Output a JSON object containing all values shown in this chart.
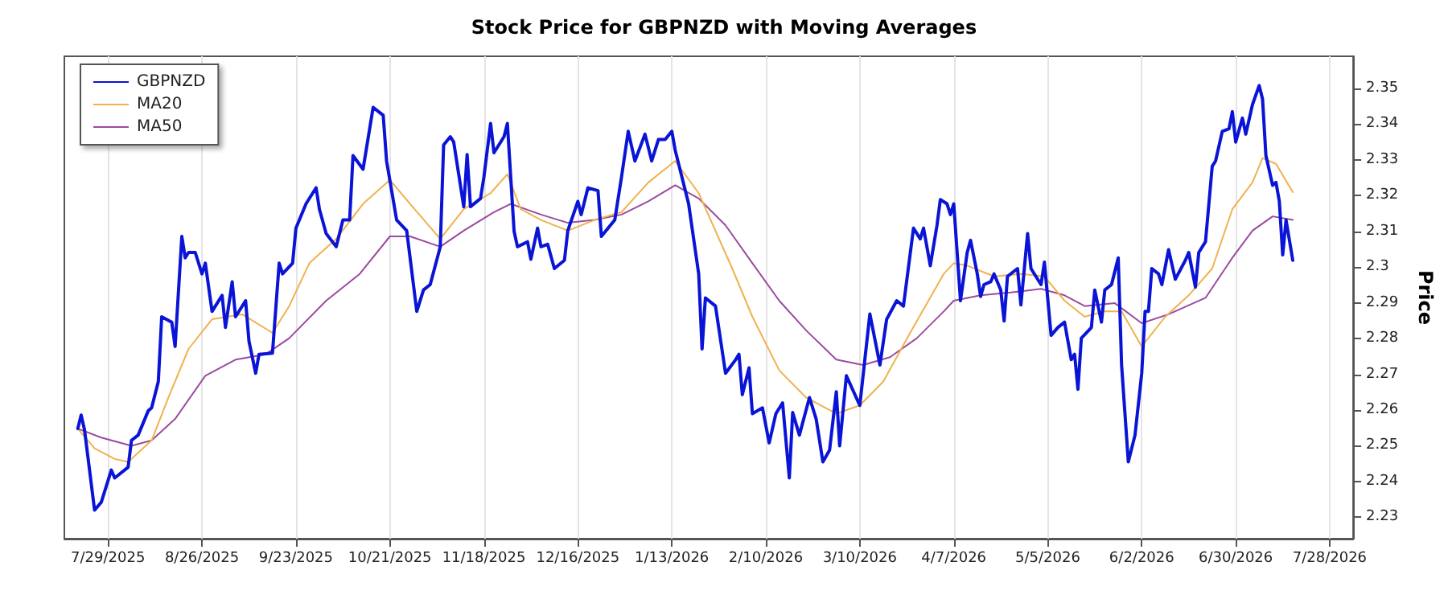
{
  "chart_data": {
    "type": "line",
    "title": "Stock Price for GBPNZD with Moving Averages",
    "ylabel": "Price",
    "xlim": [
      "2025-07-16",
      "2026-08-04"
    ],
    "ylim": [
      2.224,
      2.359
    ],
    "xticks": [
      {
        "value": "2025-07-29",
        "label": "7/29/2025"
      },
      {
        "value": "2025-08-26",
        "label": "8/26/2025"
      },
      {
        "value": "2025-09-23",
        "label": "9/23/2025"
      },
      {
        "value": "2025-10-21",
        "label": "10/21/2025"
      },
      {
        "value": "2025-11-18",
        "label": "11/18/2025"
      },
      {
        "value": "2025-12-16",
        "label": "12/16/2025"
      },
      {
        "value": "2026-01-13",
        "label": "1/13/2026"
      },
      {
        "value": "2026-02-10",
        "label": "2/10/2026"
      },
      {
        "value": "2026-03-10",
        "label": "3/10/2026"
      },
      {
        "value": "2026-04-07",
        "label": "4/7/2026"
      },
      {
        "value": "2026-05-05",
        "label": "5/5/2026"
      },
      {
        "value": "2026-06-02",
        "label": "6/2/2026"
      },
      {
        "value": "2026-06-30",
        "label": "6/30/2026"
      },
      {
        "value": "2026-07-28",
        "label": "7/28/2026"
      }
    ],
    "yticks": [
      2.23,
      2.24,
      2.25,
      2.26,
      2.27,
      2.28,
      2.29,
      {
        "value": 2.3,
        "label": "2.3"
      },
      2.31,
      2.32,
      2.33,
      2.34,
      2.35
    ],
    "grid": "x",
    "legend": "top left",
    "marker": "none",
    "line_style": "solid",
    "series": [
      {
        "name": "GBPNZD",
        "color": "#0a14d6",
        "x": [
          "2025-07-20",
          "2025-07-21",
          "2025-07-22",
          "2025-07-25",
          "2025-07-27",
          "2025-07-30",
          "2025-07-31",
          "2025-08-04",
          "2025-08-05",
          "2025-08-07",
          "2025-08-10",
          "2025-08-11",
          "2025-08-13",
          "2025-08-14",
          "2025-08-17",
          "2025-08-18",
          "2025-08-20",
          "2025-08-21",
          "2025-08-22",
          "2025-08-24",
          "2025-08-26",
          "2025-08-27",
          "2025-08-29",
          "2025-09-01",
          "2025-09-02",
          "2025-09-04",
          "2025-09-05",
          "2025-09-08",
          "2025-09-09",
          "2025-09-11",
          "2025-09-12",
          "2025-09-16",
          "2025-09-18",
          "2025-09-19",
          "2025-09-22",
          "2025-09-23",
          "2025-09-26",
          "2025-09-29",
          "2025-09-30",
          "2025-10-02",
          "2025-10-05",
          "2025-10-07",
          "2025-10-09",
          "2025-10-10",
          "2025-10-13",
          "2025-10-16",
          "2025-10-19",
          "2025-10-20",
          "2025-10-23",
          "2025-10-26",
          "2025-10-29",
          "2025-10-31",
          "2025-11-02",
          "2025-11-05",
          "2025-11-06",
          "2025-11-08",
          "2025-11-09",
          "2025-11-12",
          "2025-11-13",
          "2025-11-14",
          "2025-11-17",
          "2025-11-18",
          "2025-11-20",
          "2025-11-21",
          "2025-11-24",
          "2025-11-25",
          "2025-11-27",
          "2025-11-28",
          "2025-12-01",
          "2025-12-02",
          "2025-12-04",
          "2025-12-05",
          "2025-12-07",
          "2025-12-09",
          "2025-12-12",
          "2025-12-13",
          "2025-12-16",
          "2025-12-17",
          "2025-12-19",
          "2025-12-22",
          "2025-12-23",
          "2025-12-27",
          "2025-12-29",
          "2025-12-31",
          "2026-01-02",
          "2026-01-05",
          "2026-01-07",
          "2026-01-09",
          "2026-01-11",
          "2026-01-13",
          "2026-01-14",
          "2026-01-18",
          "2026-01-21",
          "2026-01-22",
          "2026-01-23",
          "2026-01-26",
          "2026-01-29",
          "2026-02-01",
          "2026-02-02",
          "2026-02-03",
          "2026-02-05",
          "2026-02-06",
          "2026-02-09",
          "2026-02-11",
          "2026-02-13",
          "2026-02-15",
          "2026-02-17",
          "2026-02-18",
          "2026-02-20",
          "2026-02-23",
          "2026-02-25",
          "2026-02-27",
          "2026-03-01",
          "2026-03-03",
          "2026-03-04",
          "2026-03-06",
          "2026-03-10",
          "2026-03-13",
          "2026-03-16",
          "2026-03-18",
          "2026-03-21",
          "2026-03-23",
          "2026-03-26",
          "2026-03-28",
          "2026-03-29",
          "2026-03-31",
          "2026-04-02",
          "2026-04-03",
          "2026-04-05",
          "2026-04-06",
          "2026-04-07",
          "2026-04-09",
          "2026-04-11",
          "2026-04-12",
          "2026-04-14",
          "2026-04-15",
          "2026-04-16",
          "2026-04-18",
          "2026-04-19",
          "2026-04-21",
          "2026-04-22",
          "2026-04-23",
          "2026-04-26",
          "2026-04-27",
          "2026-04-29",
          "2026-04-30",
          "2026-05-03",
          "2026-05-04",
          "2026-05-06",
          "2026-05-08",
          "2026-05-10",
          "2026-05-12",
          "2026-05-13",
          "2026-05-14",
          "2026-05-15",
          "2026-05-18",
          "2026-05-19",
          "2026-05-21",
          "2026-05-22",
          "2026-05-24",
          "2026-05-26",
          "2026-05-27",
          "2026-05-29",
          "2026-05-31",
          "2026-06-02",
          "2026-06-03",
          "2026-06-04",
          "2026-06-05",
          "2026-06-07",
          "2026-06-08",
          "2026-06-10",
          "2026-06-12",
          "2026-06-15",
          "2026-06-16",
          "2026-06-18",
          "2026-06-19",
          "2026-06-21",
          "2026-06-23",
          "2026-06-24",
          "2026-06-26",
          "2026-06-28",
          "2026-06-29",
          "2026-06-30",
          "2026-07-02",
          "2026-07-03",
          "2026-07-05",
          "2026-07-07",
          "2026-07-08",
          "2026-07-09",
          "2026-07-11",
          "2026-07-12",
          "2026-07-13",
          "2026-07-14",
          "2026-07-15",
          "2026-07-17"
        ],
        "values": [
          2.2548,
          2.2586,
          2.2545,
          2.232,
          2.2342,
          2.2432,
          2.241,
          2.244,
          2.2515,
          2.253,
          2.2598,
          2.2606,
          2.268,
          2.2861,
          2.2846,
          2.2778,
          2.3086,
          2.3026,
          2.3041,
          2.3041,
          2.2981,
          2.3011,
          2.2876,
          2.2921,
          2.2831,
          2.2959,
          2.2861,
          2.2906,
          2.2793,
          2.2703,
          2.2756,
          2.2759,
          2.3011,
          2.2981,
          2.3011,
          2.3109,
          2.3177,
          2.3222,
          2.3162,
          2.3094,
          2.3057,
          2.3132,
          2.3132,
          2.3312,
          2.3274,
          2.3447,
          2.3425,
          2.3297,
          2.3132,
          2.3102,
          2.2876,
          2.2936,
          2.2951,
          2.3057,
          2.3342,
          2.3365,
          2.335,
          2.3169,
          2.3315,
          2.3169,
          2.3192,
          2.3252,
          2.3402,
          2.332,
          2.3365,
          2.3402,
          2.31,
          2.3057,
          2.3071,
          2.3022,
          2.3109,
          2.3057,
          2.3064,
          2.2996,
          2.3019,
          2.3102,
          2.3184,
          2.3147,
          2.3222,
          2.3214,
          2.3086,
          2.3132,
          2.3252,
          2.338,
          2.3297,
          2.3372,
          2.3297,
          2.3357,
          2.3357,
          2.338,
          2.3327,
          2.3177,
          2.2981,
          2.2771,
          2.2914,
          2.2891,
          2.2703,
          2.2741,
          2.2756,
          2.2643,
          2.2718,
          2.259,
          2.2606,
          2.2508,
          2.259,
          2.262,
          2.241,
          2.2593,
          2.253,
          2.2635,
          2.2575,
          2.2455,
          2.2488,
          2.2651,
          2.25,
          2.2696,
          2.2613,
          2.2869,
          2.2726,
          2.2854,
          2.2906,
          2.2891,
          2.3109,
          2.3079,
          2.3109,
          2.3004,
          2.3117,
          2.3189,
          2.3177,
          2.3147,
          2.3177,
          2.2906,
          2.3041,
          2.3075,
          2.2981,
          2.2918,
          2.2951,
          2.2959,
          2.2981,
          2.2936,
          2.2849,
          2.2974,
          2.2996,
          2.2894,
          2.3094,
          2.2996,
          2.2951,
          2.3014,
          2.2809,
          2.2831,
          2.2846,
          2.2741,
          2.2756,
          2.2658,
          2.2801,
          2.2831,
          2.2936,
          2.2846,
          2.2936,
          2.2951,
          2.3026,
          2.2726,
          2.2455,
          2.253,
          2.2703,
          2.2876,
          2.2876,
          2.2996,
          2.2981,
          2.2951,
          2.3049,
          2.2966,
          2.3019,
          2.3041,
          2.2944,
          2.3041,
          2.3071,
          2.3282,
          2.3297,
          2.338,
          2.3387,
          2.3435,
          2.335,
          2.3417,
          2.3372,
          2.3455,
          2.3508,
          2.347,
          2.3312,
          2.3229,
          2.3237,
          2.3184,
          2.3034,
          2.3132,
          2.3019
        ]
      },
      {
        "name": "MA20",
        "color": "#f0b24e",
        "x": [
          "2025-07-20",
          "2025-07-25",
          "2025-07-31",
          "2025-08-04",
          "2025-08-11",
          "2025-08-16",
          "2025-08-22",
          "2025-08-29",
          "2025-09-07",
          "2025-09-16",
          "2025-09-21",
          "2025-09-27",
          "2025-10-05",
          "2025-10-13",
          "2025-10-21",
          "2025-10-27",
          "2025-11-05",
          "2025-11-12",
          "2025-11-20",
          "2025-11-25",
          "2025-11-29",
          "2025-12-05",
          "2025-12-13",
          "2025-12-21",
          "2025-12-29",
          "2026-01-06",
          "2026-01-14",
          "2026-01-21",
          "2026-01-31",
          "2026-02-06",
          "2026-02-14",
          "2026-02-22",
          "2026-03-03",
          "2026-03-10",
          "2026-03-17",
          "2026-03-25",
          "2026-04-04",
          "2026-04-07",
          "2026-04-11",
          "2026-04-19",
          "2026-04-27",
          "2026-05-04",
          "2026-05-10",
          "2026-05-16",
          "2026-05-22",
          "2026-05-27",
          "2026-06-02",
          "2026-06-09",
          "2026-06-16",
          "2026-06-23",
          "2026-06-29",
          "2026-07-05",
          "2026-07-08",
          "2026-07-12",
          "2026-07-17"
        ],
        "values": [
          2.2548,
          2.2493,
          2.2463,
          2.2455,
          2.2515,
          2.2635,
          2.2771,
          2.2854,
          2.2868,
          2.2816,
          2.2891,
          2.3011,
          2.3079,
          2.3177,
          2.3244,
          2.3177,
          2.3079,
          2.3162,
          2.3207,
          2.326,
          2.3162,
          2.3132,
          2.3102,
          2.3132,
          2.3154,
          2.3237,
          2.3297,
          2.3207,
          2.2996,
          2.2861,
          2.2711,
          2.2635,
          2.259,
          2.2613,
          2.268,
          2.2816,
          2.2981,
          2.3011,
          2.3004,
          2.2974,
          2.2981,
          2.2974,
          2.2906,
          2.2861,
          2.2876,
          2.2876,
          2.2778,
          2.2861,
          2.2921,
          2.2996,
          2.3162,
          2.3237,
          2.3305,
          2.3289,
          2.321
        ]
      },
      {
        "name": "MA50",
        "color": "#9b4ba0",
        "x": [
          "2025-07-20",
          "2025-07-27",
          "2025-08-05",
          "2025-08-11",
          "2025-08-18",
          "2025-08-27",
          "2025-09-05",
          "2025-09-14",
          "2025-09-21",
          "2025-10-02",
          "2025-10-12",
          "2025-10-21",
          "2025-10-27",
          "2025-11-05",
          "2025-11-12",
          "2025-11-21",
          "2025-11-26",
          "2025-12-05",
          "2025-12-13",
          "2025-12-21",
          "2025-12-29",
          "2026-01-06",
          "2026-01-14",
          "2026-01-21",
          "2026-01-29",
          "2026-02-06",
          "2026-02-14",
          "2026-02-22",
          "2026-03-03",
          "2026-03-11",
          "2026-03-19",
          "2026-03-27",
          "2026-04-04",
          "2026-04-07",
          "2026-04-15",
          "2026-04-24",
          "2026-05-03",
          "2026-05-10",
          "2026-05-16",
          "2026-05-25",
          "2026-06-02",
          "2026-06-10",
          "2026-06-21",
          "2026-06-29",
          "2026-07-05",
          "2026-07-11",
          "2026-07-17"
        ],
        "values": [
          2.2548,
          2.2523,
          2.25,
          2.2515,
          2.2575,
          2.2696,
          2.2741,
          2.2756,
          2.2801,
          2.2906,
          2.2981,
          2.3086,
          2.3086,
          2.3057,
          2.3102,
          2.3154,
          2.3177,
          2.3147,
          2.3124,
          2.3132,
          2.3147,
          2.3184,
          2.3229,
          2.3192,
          2.3117,
          2.3011,
          2.2906,
          2.2823,
          2.2741,
          2.2726,
          2.2748,
          2.2801,
          2.2876,
          2.2906,
          2.2921,
          2.2929,
          2.2939,
          2.2921,
          2.2891,
          2.2899,
          2.2843,
          2.2868,
          2.2914,
          2.3026,
          2.3102,
          2.3142,
          2.3132
        ]
      }
    ]
  }
}
